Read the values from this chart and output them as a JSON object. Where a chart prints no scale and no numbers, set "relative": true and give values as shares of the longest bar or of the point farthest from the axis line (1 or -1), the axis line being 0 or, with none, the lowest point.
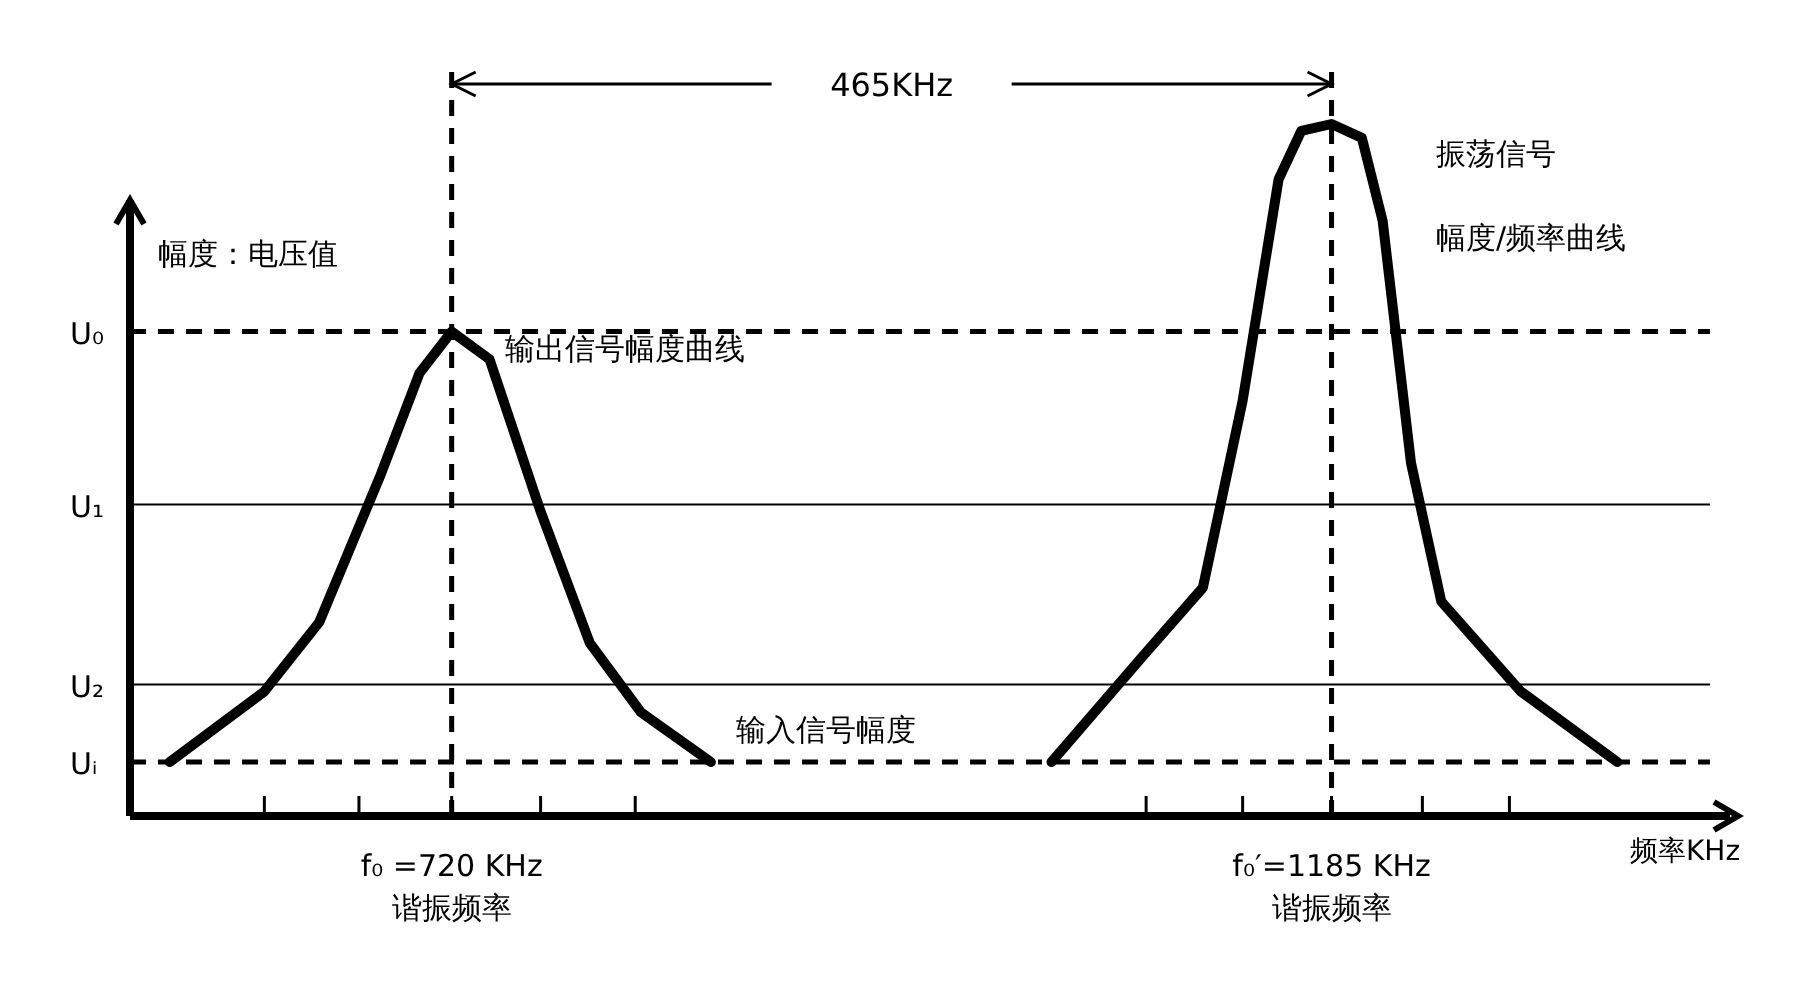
{
  "chart_data": {
    "type": "line",
    "relative": true,
    "ylabel": "幅度：电压值",
    "xlabel": "频率KHz",
    "xlim": [
      550,
      1385
    ],
    "xticks": [
      {
        "value": 621,
        "label": null
      },
      {
        "value": 671,
        "label": null
      },
      {
        "value": 720,
        "label": "f₀ =720 KHz\n谐振频率"
      },
      {
        "value": 767,
        "label": null
      },
      {
        "value": 817,
        "label": null
      },
      {
        "value": 1087,
        "label": null
      },
      {
        "value": 1138,
        "label": null
      },
      {
        "value": 1185,
        "label": "f₀′=1185 KHz\n谐振频率"
      },
      {
        "value": 1233,
        "label": null
      },
      {
        "value": 1279,
        "label": null
      }
    ],
    "tick_labels": "x",
    "marker": "none",
    "series": [
      {
        "color": "#000000",
        "line_style": "solid",
        "x": [
          571,
          621,
          650,
          682,
          703,
          720,
          740,
          767,
          793,
          820,
          857
        ],
        "values": [
          0.078,
          0.18,
          0.28,
          0.49,
          0.64,
          0.7,
          0.66,
          0.44,
          0.25,
          0.15,
          0.078
        ]
      },
      {
        "color": "#000000",
        "line_style": "solid",
        "x": [
          1037,
          1085,
          1117,
          1138,
          1157,
          1169,
          1185,
          1201,
          1212,
          1227,
          1243,
          1285,
          1336
        ],
        "values": [
          0.078,
          0.23,
          0.33,
          0.6,
          0.92,
          0.99,
          1,
          0.98,
          0.86,
          0.51,
          0.31,
          0.18,
          0.078
        ]
      }
    ],
    "ref_lines": [
      {
        "axis": "y",
        "value": 0.7,
        "label": "U₀",
        "line_style": "dashed",
        "color": "#000000"
      },
      {
        "axis": "y",
        "value": 0.45,
        "label": "U₁",
        "line_style": "solid",
        "color": "#000000"
      },
      {
        "axis": "y",
        "value": 0.19,
        "label": "U₂",
        "line_style": "solid",
        "color": "#000000"
      },
      {
        "axis": "y",
        "value": 0.078,
        "label": "Uᵢ",
        "line_style": "dashed",
        "color": "#000000"
      },
      {
        "axis": "x",
        "value": 720,
        "label": null,
        "line_style": "dashed",
        "color": "#000000"
      },
      {
        "axis": "x",
        "value": 1185,
        "label": null,
        "line_style": "dashed",
        "color": "#000000"
      }
    ],
    "annotations": [
      "465KHz",
      {
        "text": "输出信号幅度曲线",
        "x": 748,
        "y": 0.66
      },
      "输入信号幅度",
      "振荡信号",
      "幅度/频率曲线"
    ]
  }
}
